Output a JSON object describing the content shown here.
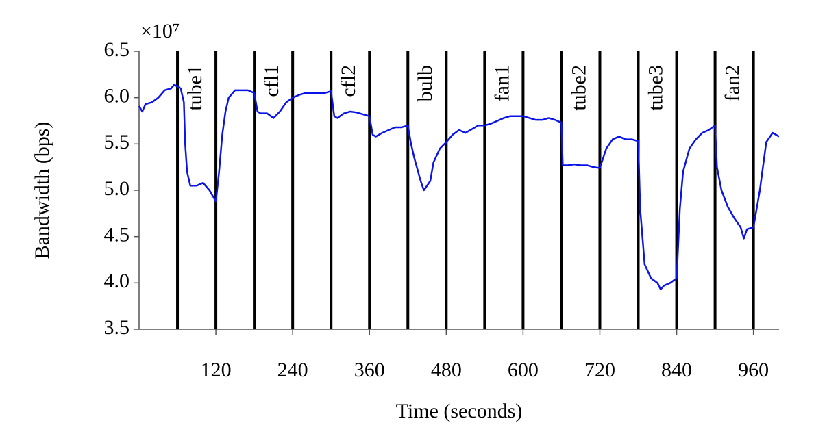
{
  "chart_data": {
    "type": "line",
    "xlabel": "Time (seconds)",
    "ylabel": "Bandwidth (bps)",
    "y_multiplier": "×10⁷",
    "xlim": [
      0,
      1000
    ],
    "xticks": [
      120,
      240,
      360,
      480,
      600,
      720,
      840,
      960
    ],
    "ylim": [
      3.5,
      6.5
    ],
    "yticks": [
      3.5,
      {
        "value": 4,
        "label": "4.0"
      },
      4.5,
      {
        "value": 5,
        "label": "5.0"
      },
      5.5,
      {
        "value": 6,
        "label": "6.0"
      },
      6.5
    ],
    "event_color": "#000000",
    "events": [
      {
        "start": 60,
        "end": 120,
        "label": "tube1"
      },
      {
        "start": 180,
        "end": 240,
        "label": "cfl1"
      },
      {
        "start": 300,
        "end": 360,
        "label": "cfl2"
      },
      {
        "start": 420,
        "end": 480,
        "label": "bulb"
      },
      {
        "start": 540,
        "end": 600,
        "label": "fan1"
      },
      {
        "start": 660,
        "end": 720,
        "label": "tube2"
      },
      {
        "start": 780,
        "end": 840,
        "label": "tube3"
      },
      {
        "start": 900,
        "end": 960,
        "label": "fan2"
      }
    ],
    "series": [
      {
        "color": "#0a14e6",
        "x": [
          0,
          5,
          10,
          20,
          30,
          40,
          50,
          55,
          60,
          65,
          70,
          72,
          75,
          80,
          90,
          100,
          110,
          120,
          125,
          130,
          135,
          140,
          150,
          160,
          170,
          180,
          185,
          190,
          200,
          210,
          220,
          230,
          240,
          250,
          260,
          270,
          280,
          290,
          300,
          305,
          310,
          320,
          330,
          340,
          350,
          360,
          365,
          370,
          380,
          390,
          400,
          410,
          420,
          425,
          430,
          440,
          445,
          450,
          455,
          460,
          470,
          480,
          490,
          500,
          510,
          520,
          530,
          540,
          550,
          560,
          570,
          580,
          590,
          600,
          610,
          620,
          630,
          640,
          650,
          660,
          662,
          670,
          680,
          690,
          700,
          710,
          720,
          730,
          740,
          750,
          760,
          770,
          780,
          783,
          790,
          800,
          810,
          815,
          820,
          830,
          840,
          845,
          850,
          860,
          870,
          880,
          890,
          900,
          903,
          910,
          920,
          930,
          940,
          945,
          950,
          960,
          970,
          980,
          990,
          1000
        ],
        "values": [
          5.91,
          5.85,
          5.93,
          5.95,
          6.0,
          6.08,
          6.1,
          6.14,
          6.12,
          6.1,
          5.95,
          5.5,
          5.2,
          5.05,
          5.05,
          5.08,
          5.0,
          4.88,
          5.2,
          5.6,
          5.85,
          6.0,
          6.08,
          6.08,
          6.08,
          6.05,
          5.85,
          5.83,
          5.83,
          5.78,
          5.85,
          5.95,
          6.0,
          6.03,
          6.05,
          6.05,
          6.05,
          6.05,
          6.07,
          5.8,
          5.78,
          5.83,
          5.85,
          5.84,
          5.82,
          5.8,
          5.6,
          5.58,
          5.62,
          5.65,
          5.68,
          5.68,
          5.7,
          5.5,
          5.35,
          5.1,
          5.0,
          5.05,
          5.1,
          5.3,
          5.45,
          5.52,
          5.6,
          5.65,
          5.62,
          5.66,
          5.7,
          5.7,
          5.72,
          5.75,
          5.78,
          5.8,
          5.8,
          5.8,
          5.78,
          5.76,
          5.76,
          5.78,
          5.76,
          5.73,
          5.27,
          5.27,
          5.28,
          5.27,
          5.27,
          5.25,
          5.24,
          5.45,
          5.55,
          5.58,
          5.55,
          5.55,
          5.53,
          4.8,
          4.2,
          4.05,
          4.0,
          3.93,
          3.97,
          4.0,
          4.05,
          4.8,
          5.2,
          5.45,
          5.55,
          5.62,
          5.65,
          5.7,
          5.25,
          5.0,
          4.82,
          4.7,
          4.6,
          4.48,
          4.58,
          4.6,
          5.0,
          5.52,
          5.62,
          5.58
        ]
      }
    ]
  }
}
